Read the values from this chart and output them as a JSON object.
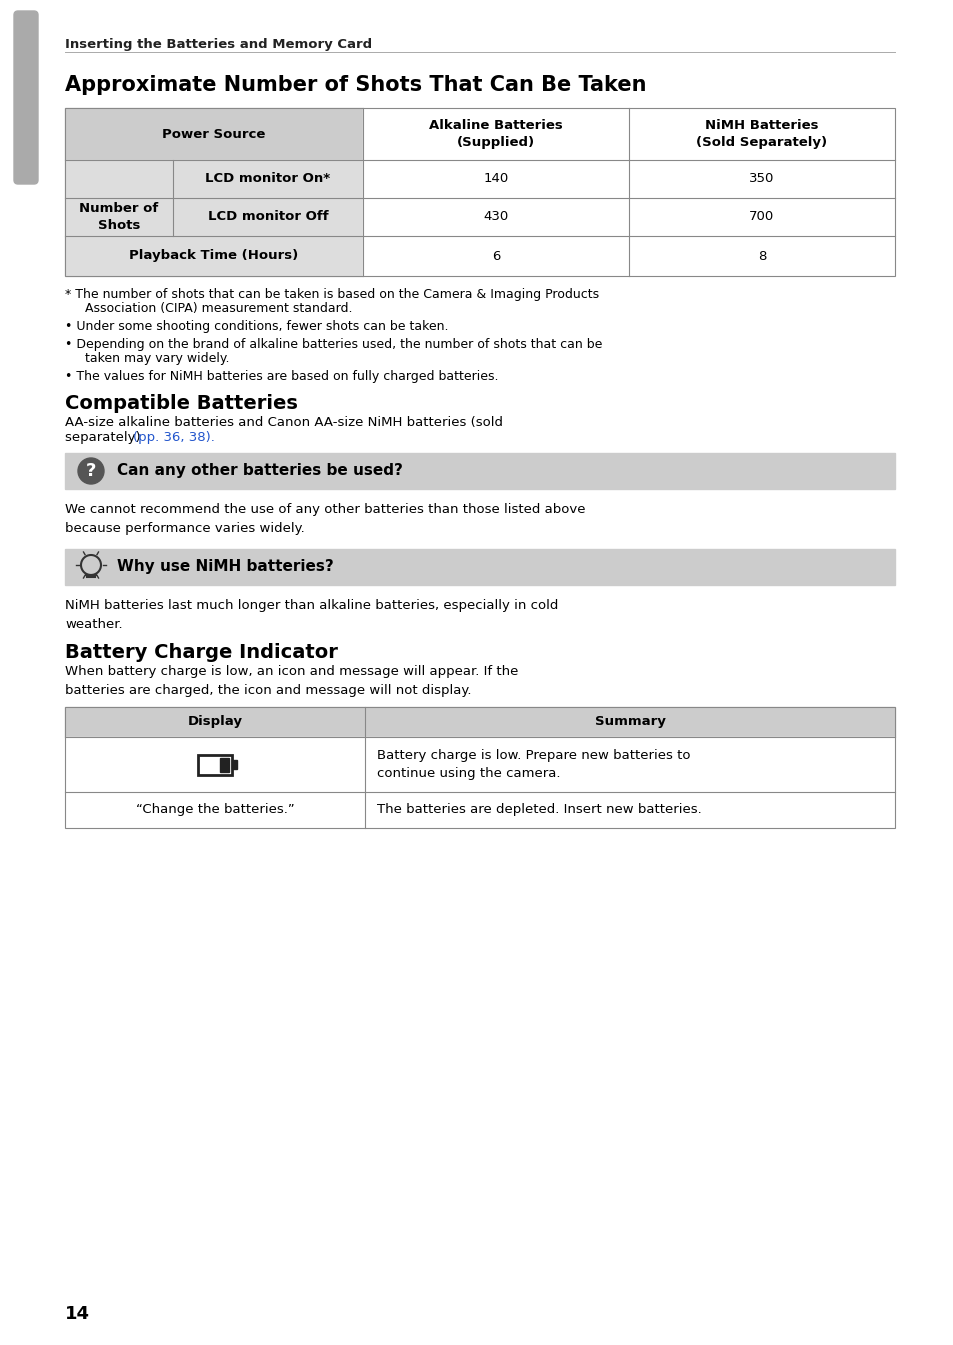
{
  "bg_color": "#ffffff",
  "sidebar_color": "#aaaaaa",
  "header_text": "Inserting the Batteries and Memory Card",
  "title": "Approximate Number of Shots That Can Be Taken",
  "table1_header_bg": "#cccccc",
  "table1_row_bg": "#dddddd",
  "table1_border": "#888888",
  "footnotes": [
    "* The number of shots that can be taken is based on the Camera & Imaging Products\n  Association (CIPA) measurement standard.",
    "• Under some shooting conditions, fewer shots can be taken.",
    "• Depending on the brand of alkaline batteries used, the number of shots that can be\n  taken may vary widely.",
    "• The values for NiMH batteries are based on fully charged batteries."
  ],
  "section2_title": "Compatible Batteries",
  "section2_body1": "AA-size alkaline batteries and Canon AA-size NiMH batteries (sold",
  "section2_body2": "separately) ",
  "section2_link": "(pp. 36, 38).",
  "section2_link_color": "#2255cc",
  "callout1_bg": "#cccccc",
  "callout1_title": "Can any other batteries be used?",
  "callout1_body": "We cannot recommend the use of any other batteries than those listed above\nbecause performance varies widely.",
  "callout2_bg": "#cccccc",
  "callout2_title": "Why use NiMH batteries?",
  "callout2_body": "NiMH batteries last much longer than alkaline batteries, especially in cold\nweather.",
  "section3_title": "Battery Charge Indicator",
  "section3_body": "When battery charge is low, an icon and message will appear. If the\nbatteries are charged, the icon and message will not display.",
  "table2_header_bg": "#cccccc",
  "table2_border": "#888888",
  "batt_summary": "Battery charge is low. Prepare new batteries to\ncontinue using the camera.",
  "change_display": "“Change the batteries.”",
  "change_summary": "The batteries are depleted. Insert new batteries.",
  "page_number": "14",
  "lmargin": 65,
  "rmargin": 895,
  "fs_header": 9.5,
  "fs_title": 15,
  "fs_body": 9.5,
  "fs_table": 9.5,
  "fs_footnote": 9,
  "fs_section": 14,
  "fs_callout_title": 11,
  "fs_page": 13
}
